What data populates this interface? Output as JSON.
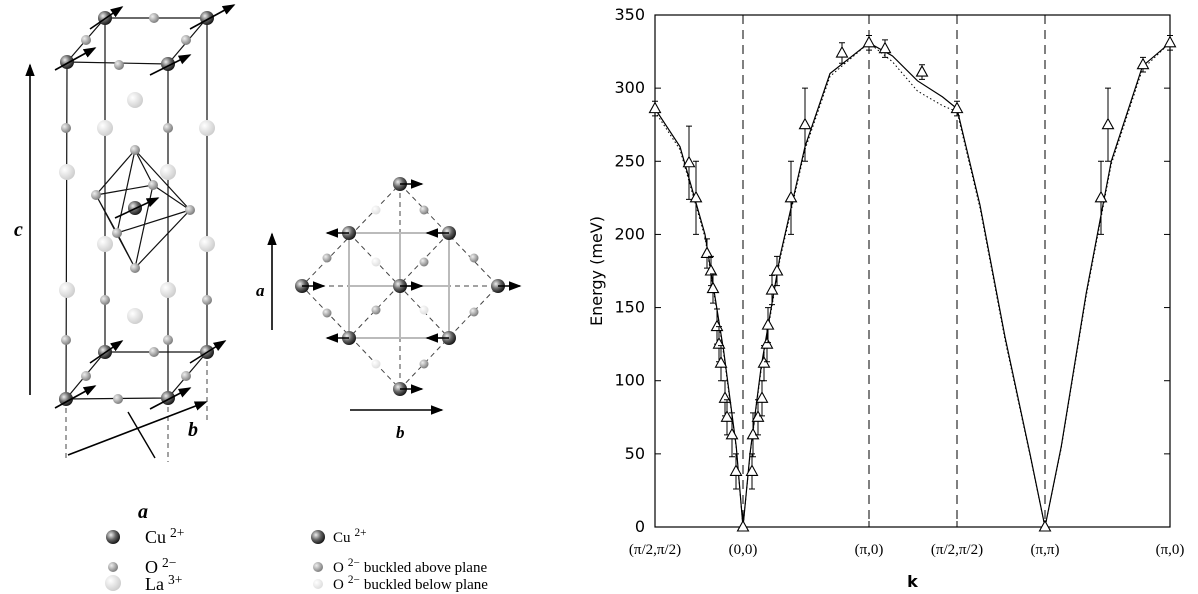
{
  "diagram": {
    "structure_axes": {
      "c": "c",
      "a": "a",
      "b": "b"
    },
    "plane_axes": {
      "a": "a",
      "b": "b"
    },
    "legend_left": [
      {
        "ion": "Cu",
        "charge": "2+"
      },
      {
        "ion": "O",
        "charge": "2−"
      },
      {
        "ion": "La",
        "charge": "3+"
      }
    ],
    "legend_right": [
      {
        "ion": "Cu",
        "charge": "2+",
        "text": ""
      },
      {
        "ion": "O",
        "charge": "2−",
        "text": "buckled above plane"
      },
      {
        "ion": "O",
        "charge": "2−",
        "text": "buckled below plane"
      }
    ]
  },
  "chart_data": {
    "type": "line",
    "ylabel": "Energy (meV)",
    "xlabel": "k",
    "xlim": [
      0,
      4.12
    ],
    "ylim": [
      0,
      350
    ],
    "yticks": [
      0,
      50,
      100,
      150,
      200,
      250,
      300,
      350
    ],
    "xticks": [
      {
        "value": 0,
        "label": "(π/2,π/2)"
      },
      {
        "value": 0.704,
        "label": "(0,0)"
      },
      {
        "value": 1.712,
        "label": "(π,0)"
      },
      {
        "value": 2.416,
        "label": "(π/2,π/2)"
      },
      {
        "value": 3.12,
        "label": "(π,π)"
      },
      {
        "value": 4.12,
        "label": "(π,0)"
      }
    ],
    "grid": "x-dashed",
    "series": [
      {
        "style": "solid",
        "color": "#000000",
        "x": [
          0,
          0.2,
          0.4,
          0.55,
          0.65,
          0.704,
          0.76,
          0.85,
          1.0,
          1.2,
          1.4,
          1.712,
          1.9,
          2.1,
          2.3,
          2.416,
          2.6,
          2.8,
          3.0,
          3.12,
          3.25,
          3.45,
          3.65,
          3.9,
          4.12
        ],
        "values": [
          286,
          260,
          200,
          120,
          55,
          0,
          50,
          110,
          185,
          260,
          310,
          331,
          322,
          305,
          294,
          286,
          220,
          130,
          50,
          0,
          55,
          160,
          250,
          315,
          331
        ]
      },
      {
        "style": "dotted",
        "color": "#000000",
        "x": [
          0,
          0.2,
          0.4,
          0.55,
          0.65,
          0.704,
          0.76,
          0.85,
          1.0,
          1.2,
          1.4,
          1.712,
          1.9,
          2.1,
          2.3,
          2.416,
          2.6,
          2.8,
          3.0,
          3.12,
          3.25,
          3.45,
          3.65,
          3.9,
          4.12
        ],
        "values": [
          284,
          258,
          198,
          118,
          54,
          0,
          49,
          108,
          183,
          258,
          308,
          331,
          318,
          298,
          288,
          284,
          218,
          128,
          49,
          0,
          54,
          158,
          248,
          313,
          331
        ]
      },
      {
        "style": "triangles",
        "color": "#000000",
        "x": [
          0,
          0.272,
          0.328,
          0.416,
          0.448,
          0.464,
          0.496,
          0.512,
          0.528,
          0.56,
          0.576,
          0.616,
          0.648,
          0.704,
          0.776,
          0.784,
          0.824,
          0.856,
          0.872,
          0.896,
          0.904,
          0.936,
          0.976,
          1.088,
          1.2,
          1.496,
          1.712,
          1.84,
          2.136,
          2.416,
          3.12,
          3.568,
          3.624,
          3.904,
          4.12
        ],
        "values": [
          286,
          249,
          225,
          187,
          175,
          163,
          137,
          125,
          112,
          88,
          75,
          63,
          38,
          0,
          38,
          63,
          75,
          88,
          112,
          125,
          138,
          162,
          175,
          225,
          275,
          324,
          331,
          327,
          311,
          286,
          0,
          225,
          275,
          316,
          331
        ],
        "errors": [
          5,
          25,
          25,
          10,
          10,
          10,
          12,
          12,
          12,
          12,
          12,
          15,
          12,
          0,
          12,
          15,
          12,
          12,
          12,
          12,
          12,
          10,
          10,
          25,
          25,
          7,
          5,
          6,
          5,
          5,
          0,
          25,
          25,
          5,
          5
        ]
      }
    ]
  }
}
